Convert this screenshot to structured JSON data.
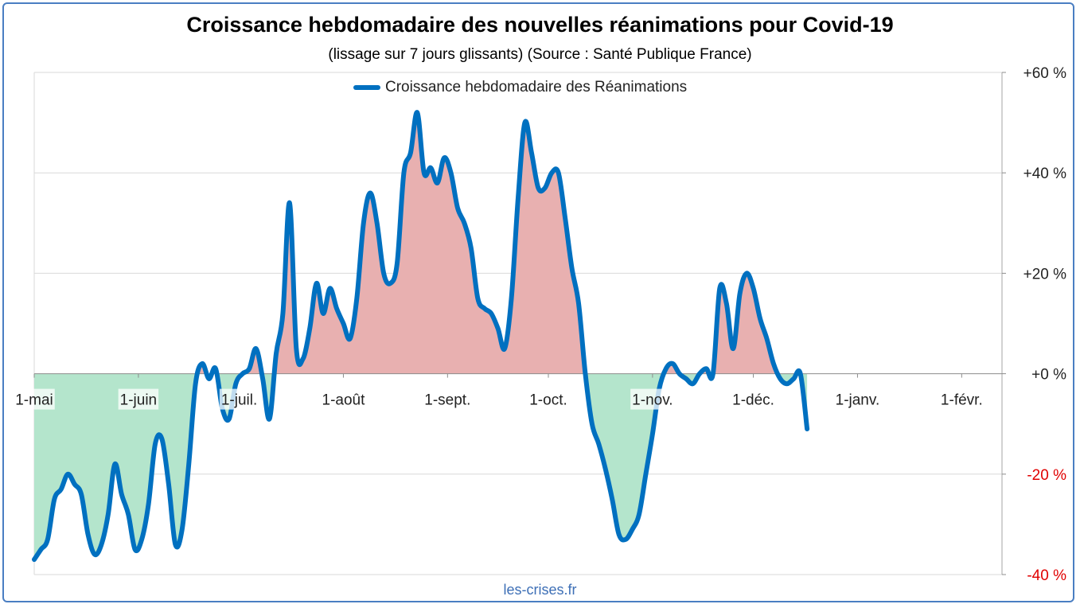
{
  "title": "Croissance hebdomadaire des nouvelles réanimations pour Covid-19",
  "subtitle": "(lissage sur 7 jours glissants) (Source : Santé Publique France)",
  "watermark": "les-crises.fr",
  "colors": {
    "line": "#0070c0",
    "positive_fill": "#e8b0b0",
    "negative_fill": "#b4e5cc",
    "negative_label": "#e00000",
    "grid": "#d9d9d9",
    "frame": "#4a7ec2"
  },
  "chart_data": {
    "type": "area",
    "title": "Croissance hebdomadaire des nouvelles réanimations pour Covid-19",
    "subtitle": "(lissage sur 7 jours glissants) (Source : Santé Publique France)",
    "xlabel": "",
    "ylabel": "",
    "ylim": [
      -40,
      60
    ],
    "y_axis_side": "right",
    "yticks": [
      60,
      40,
      20,
      0,
      -20,
      -40
    ],
    "ytick_labels": [
      "+60 %",
      "+40 %",
      "+20 %",
      "+0 %",
      "-20 %",
      "-40 %"
    ],
    "x_start": "2020-05-01",
    "x_end": "2021-02-13",
    "xtick_labels": [
      "1-mai",
      "1-juin",
      "1-juil.",
      "1-août",
      "1-sept.",
      "1-oct.",
      "1-nov.",
      "1-déc.",
      "1-janv.",
      "1-févr."
    ],
    "xticks": [
      "2020-05-01",
      "2020-06-01",
      "2020-07-01",
      "2020-08-01",
      "2020-09-01",
      "2020-10-01",
      "2020-11-01",
      "2020-12-01",
      "2021-01-01",
      "2021-02-01"
    ],
    "grid": true,
    "legend_position": "top-center",
    "series": [
      {
        "name": "Croissance hebdomadaire des Réanimations",
        "points": [
          [
            "2020-05-01",
            -37
          ],
          [
            "2020-05-03",
            -35
          ],
          [
            "2020-05-05",
            -33
          ],
          [
            "2020-05-07",
            -25
          ],
          [
            "2020-05-09",
            -23
          ],
          [
            "2020-05-11",
            -20
          ],
          [
            "2020-05-13",
            -22
          ],
          [
            "2020-05-15",
            -24
          ],
          [
            "2020-05-17",
            -32
          ],
          [
            "2020-05-19",
            -36
          ],
          [
            "2020-05-21",
            -34
          ],
          [
            "2020-05-23",
            -28
          ],
          [
            "2020-05-25",
            -18
          ],
          [
            "2020-05-27",
            -24
          ],
          [
            "2020-05-29",
            -28
          ],
          [
            "2020-05-31",
            -35
          ],
          [
            "2020-06-02",
            -33
          ],
          [
            "2020-06-04",
            -26
          ],
          [
            "2020-06-06",
            -14
          ],
          [
            "2020-06-08",
            -13
          ],
          [
            "2020-06-10",
            -22
          ],
          [
            "2020-06-12",
            -34
          ],
          [
            "2020-06-14",
            -31
          ],
          [
            "2020-06-16",
            -18
          ],
          [
            "2020-06-18",
            -2
          ],
          [
            "2020-06-20",
            2
          ],
          [
            "2020-06-22",
            -1
          ],
          [
            "2020-06-24",
            1
          ],
          [
            "2020-06-26",
            -7
          ],
          [
            "2020-06-28",
            -9
          ],
          [
            "2020-06-30",
            -2
          ],
          [
            "2020-07-02",
            0
          ],
          [
            "2020-07-04",
            1
          ],
          [
            "2020-07-06",
            5
          ],
          [
            "2020-07-08",
            -1
          ],
          [
            "2020-07-10",
            -9
          ],
          [
            "2020-07-12",
            4
          ],
          [
            "2020-07-14",
            12
          ],
          [
            "2020-07-16",
            34
          ],
          [
            "2020-07-18",
            5
          ],
          [
            "2020-07-20",
            3
          ],
          [
            "2020-07-22",
            9
          ],
          [
            "2020-07-24",
            18
          ],
          [
            "2020-07-26",
            12
          ],
          [
            "2020-07-28",
            17
          ],
          [
            "2020-07-30",
            13
          ],
          [
            "2020-08-01",
            10
          ],
          [
            "2020-08-03",
            7
          ],
          [
            "2020-08-05",
            15
          ],
          [
            "2020-08-07",
            30
          ],
          [
            "2020-08-09",
            36
          ],
          [
            "2020-08-11",
            30
          ],
          [
            "2020-08-13",
            20
          ],
          [
            "2020-08-15",
            18
          ],
          [
            "2020-08-17",
            22
          ],
          [
            "2020-08-19",
            40
          ],
          [
            "2020-08-21",
            44
          ],
          [
            "2020-08-23",
            52
          ],
          [
            "2020-08-25",
            40
          ],
          [
            "2020-08-27",
            41
          ],
          [
            "2020-08-29",
            38
          ],
          [
            "2020-08-31",
            43
          ],
          [
            "2020-09-02",
            40
          ],
          [
            "2020-09-04",
            33
          ],
          [
            "2020-09-06",
            30
          ],
          [
            "2020-09-08",
            25
          ],
          [
            "2020-09-10",
            15
          ],
          [
            "2020-09-12",
            13
          ],
          [
            "2020-09-14",
            12
          ],
          [
            "2020-09-16",
            9
          ],
          [
            "2020-09-18",
            5
          ],
          [
            "2020-09-20",
            15
          ],
          [
            "2020-09-22",
            35
          ],
          [
            "2020-09-24",
            50
          ],
          [
            "2020-09-26",
            44
          ],
          [
            "2020-09-28",
            37
          ],
          [
            "2020-09-30",
            37
          ],
          [
            "2020-10-02",
            40
          ],
          [
            "2020-10-04",
            40
          ],
          [
            "2020-10-06",
            31
          ],
          [
            "2020-10-08",
            21
          ],
          [
            "2020-10-10",
            14
          ],
          [
            "2020-10-12",
            0
          ],
          [
            "2020-10-14",
            -10
          ],
          [
            "2020-10-16",
            -14
          ],
          [
            "2020-10-18",
            -19
          ],
          [
            "2020-10-20",
            -25
          ],
          [
            "2020-10-22",
            -32
          ],
          [
            "2020-10-24",
            -33
          ],
          [
            "2020-10-26",
            -31
          ],
          [
            "2020-10-28",
            -28
          ],
          [
            "2020-10-30",
            -20
          ],
          [
            "2020-11-01",
            -12
          ],
          [
            "2020-11-03",
            -3
          ],
          [
            "2020-11-05",
            1
          ],
          [
            "2020-11-07",
            2
          ],
          [
            "2020-11-09",
            0
          ],
          [
            "2020-11-11",
            -1
          ],
          [
            "2020-11-13",
            -2
          ],
          [
            "2020-11-15",
            0
          ],
          [
            "2020-11-17",
            1
          ],
          [
            "2020-11-19",
            0
          ],
          [
            "2020-11-21",
            17
          ],
          [
            "2020-11-23",
            14
          ],
          [
            "2020-11-25",
            5
          ],
          [
            "2020-11-27",
            16
          ],
          [
            "2020-11-29",
            20
          ],
          [
            "2020-12-01",
            17
          ],
          [
            "2020-12-03",
            11
          ],
          [
            "2020-12-05",
            7
          ],
          [
            "2020-12-07",
            2
          ],
          [
            "2020-12-09",
            -1
          ],
          [
            "2020-12-11",
            -2
          ],
          [
            "2020-12-13",
            -1
          ],
          [
            "2020-12-15",
            0
          ],
          [
            "2020-12-17",
            -11
          ]
        ]
      }
    ]
  }
}
